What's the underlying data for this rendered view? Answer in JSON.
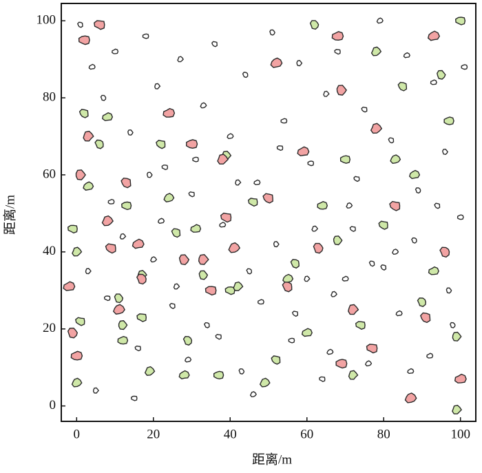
{
  "chart_data": {
    "type": "scatter",
    "xlabel": "距离/m",
    "ylabel": "距离/m",
    "xlim": [
      -4,
      104
    ],
    "ylim": [
      -4,
      104.5
    ],
    "xticks": [
      0,
      20,
      40,
      60,
      80,
      100
    ],
    "yticks": [
      0,
      20,
      40,
      60,
      80,
      100
    ],
    "series": [
      {
        "color": "#ffffff",
        "x": [
          1,
          4,
          7,
          10,
          14,
          18,
          21,
          23,
          27,
          30,
          33,
          36,
          40,
          44,
          47,
          51,
          54,
          58,
          61,
          65,
          68,
          71,
          75,
          79,
          82,
          86,
          89,
          93,
          96,
          101,
          3,
          8,
          12,
          16,
          20,
          25,
          29,
          34,
          38,
          43,
          48,
          52,
          56,
          60,
          64,
          67,
          72,
          76,
          80,
          84,
          88,
          92,
          97,
          100,
          5,
          15,
          26,
          37,
          46,
          57,
          66,
          77,
          87,
          98,
          9,
          19,
          31,
          42,
          53,
          62,
          73,
          83,
          94,
          22,
          45,
          70
        ],
        "values": [
          99,
          88,
          80,
          92,
          71,
          96,
          83,
          62,
          90,
          55,
          78,
          94,
          70,
          86,
          58,
          97,
          74,
          89,
          63,
          81,
          92,
          52,
          77,
          100,
          69,
          91,
          56,
          84,
          66,
          88,
          35,
          28,
          44,
          15,
          38,
          26,
          12,
          21,
          47,
          9,
          27,
          42,
          17,
          33,
          7,
          29,
          46,
          11,
          36,
          24,
          43,
          13,
          30,
          49,
          4,
          2,
          31,
          18,
          3,
          24,
          14,
          37,
          9,
          21,
          53,
          60,
          64,
          58,
          67,
          46,
          59,
          40,
          52,
          48,
          35,
          33
        ]
      },
      {
        "color": "#cfe8a8",
        "x": [
          -1,
          0,
          1,
          0,
          2,
          3,
          6,
          8,
          11,
          12,
          12,
          13,
          17,
          17,
          19,
          22,
          24,
          26,
          28,
          29,
          31,
          33,
          37,
          39,
          40,
          42,
          46,
          49,
          52,
          55,
          57,
          60,
          62,
          64,
          68,
          70,
          72,
          74,
          78,
          80,
          83,
          85,
          88,
          90,
          93,
          95,
          97,
          99,
          100,
          99
        ],
        "values": [
          46,
          40,
          22,
          6,
          76,
          57,
          68,
          75,
          28,
          17,
          21,
          52,
          34,
          23,
          9,
          68,
          54,
          45,
          8,
          17,
          46,
          34,
          8,
          65,
          30,
          31,
          53,
          6,
          12,
          33,
          37,
          19,
          99,
          52,
          43,
          64,
          8,
          21,
          92,
          47,
          64,
          83,
          60,
          27,
          35,
          86,
          74,
          18,
          100,
          -1
        ]
      },
      {
        "color": "#f2a3a3",
        "x": [
          -2,
          -1,
          0,
          1,
          2,
          3,
          6,
          8,
          9,
          11,
          13,
          16,
          17,
          24,
          28,
          30,
          33,
          35,
          38,
          39,
          41,
          50,
          52,
          55,
          59,
          63,
          68,
          69,
          69,
          72,
          77,
          78,
          83,
          87,
          91,
          93,
          96,
          100
        ],
        "values": [
          31,
          19,
          13,
          60,
          95,
          70,
          99,
          48,
          41,
          25,
          58,
          42,
          33,
          76,
          38,
          68,
          38,
          30,
          64,
          49,
          41,
          54,
          89,
          31,
          66,
          41,
          96,
          82,
          11,
          25,
          15,
          72,
          52,
          2,
          23,
          96,
          40,
          7
        ]
      }
    ]
  }
}
